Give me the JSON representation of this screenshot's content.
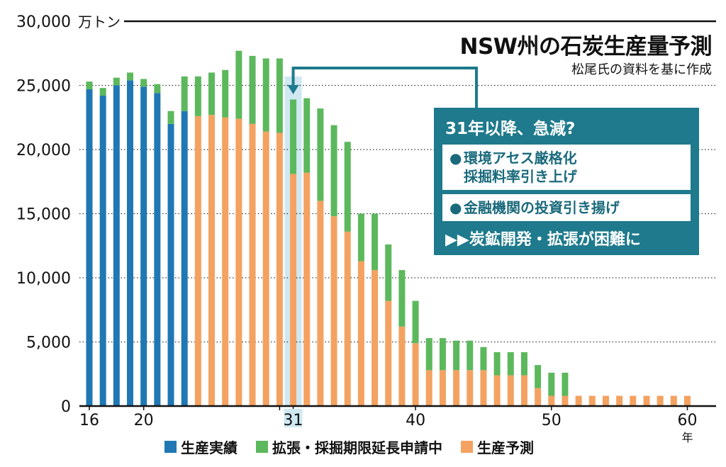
{
  "title": "NSW州の石炭生産量予測",
  "subtitle": "松尾氏の資料を基に作成",
  "y_unit": "万トン",
  "x_unit": "年",
  "callout": {
    "heading": "31年以降、急減?",
    "box1_line1": "環境アセス厳格化",
    "box1_line2": "採掘料率引き上げ",
    "box2_line1": "金融機関の投資引き揚げ",
    "footer": "▶▶炭鉱開発・拡張が困難に"
  },
  "colors": {
    "actual": "#1f78b4",
    "expansion": "#5cb85c",
    "forecast": "#f4a261",
    "callout": "#1e7a8c",
    "highlight": "#cfe8f2"
  },
  "legend": [
    {
      "label": "生産実績",
      "color": "#1f78b4"
    },
    {
      "label": "拡張・採掘期限延長申請中",
      "color": "#5cb85c"
    },
    {
      "label": "生産予測",
      "color": "#f4a261"
    }
  ],
  "chart_data": {
    "type": "bar",
    "stacked": true,
    "x_tick_labels": [
      "16",
      "20",
      "31",
      "40",
      "50",
      "60"
    ],
    "y_tick_labels": [
      "0",
      "5,000",
      "10,000",
      "15,000",
      "20,000",
      "25,000",
      "30,000"
    ],
    "ylim": [
      0,
      30000
    ],
    "highlight_year": 31,
    "years": [
      16,
      17,
      18,
      19,
      20,
      21,
      22,
      23,
      24,
      25,
      26,
      27,
      28,
      29,
      30,
      31,
      32,
      33,
      34,
      35,
      36,
      37,
      38,
      39,
      40,
      41,
      42,
      43,
      44,
      45,
      46,
      47,
      48,
      49,
      50,
      51,
      52,
      53,
      54,
      55,
      56,
      57,
      58,
      59,
      60
    ],
    "series": [
      {
        "name": "生産実績",
        "values": [
          24700,
          24200,
          25000,
          25400,
          24900,
          24400,
          22000,
          23000,
          0,
          0,
          0,
          0,
          0,
          0,
          0,
          0,
          0,
          0,
          0,
          0,
          0,
          0,
          0,
          0,
          0,
          0,
          0,
          0,
          0,
          0,
          0,
          0,
          0,
          0,
          0,
          0,
          0,
          0,
          0,
          0,
          0,
          0,
          0,
          0,
          0
        ]
      },
      {
        "name": "生産予測",
        "values": [
          0,
          0,
          0,
          0,
          0,
          0,
          0,
          0,
          22600,
          22700,
          22500,
          22400,
          22000,
          21400,
          21300,
          18100,
          18200,
          16000,
          14800,
          13600,
          11300,
          10600,
          8200,
          6200,
          4900,
          2800,
          2800,
          2800,
          2800,
          2800,
          2400,
          2400,
          2400,
          1400,
          800,
          800,
          800,
          800,
          800,
          800,
          800,
          800,
          800,
          800,
          800
        ]
      },
      {
        "name": "拡張・採掘期限延長申請中",
        "values": [
          600,
          600,
          600,
          600,
          600,
          700,
          1000,
          2700,
          3100,
          3300,
          3700,
          5300,
          5300,
          5700,
          5800,
          5800,
          5800,
          7200,
          7100,
          7000,
          3700,
          4400,
          4400,
          4400,
          3300,
          2500,
          2500,
          2300,
          2300,
          1800,
          1800,
          1800,
          1800,
          1800,
          1800,
          1800,
          0,
          0,
          0,
          0,
          0,
          0,
          0,
          0,
          0
        ]
      }
    ]
  }
}
